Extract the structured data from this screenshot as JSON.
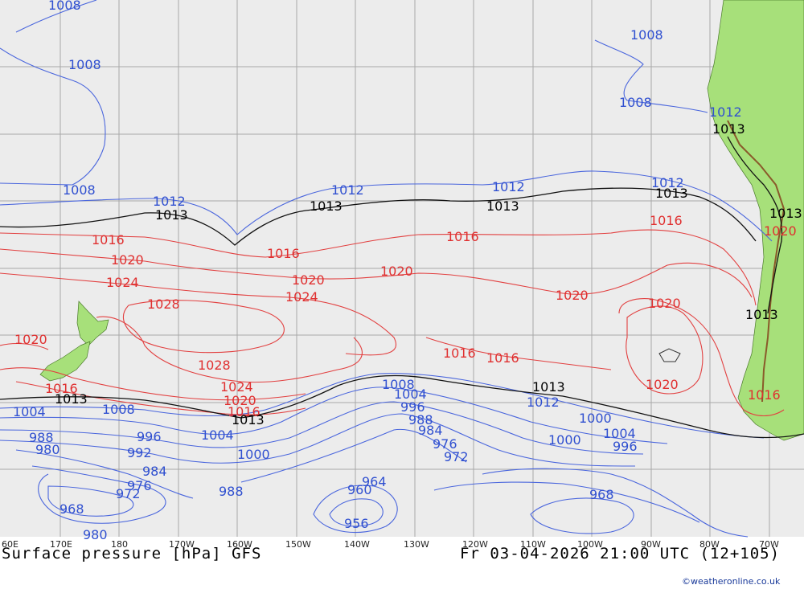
{
  "map": {
    "title_left": "Surface pressure [hPa] GFS",
    "title_right": "Fr 03-04-2026 21:00 UTC (12+105)",
    "credit": "©weatheronline.co.uk",
    "colors": {
      "ocean": "#ececec",
      "land": "#a7e07a",
      "low_isobar": "#4a66dd",
      "high_isobar": "#e24040",
      "ref_isobar": "#111111"
    },
    "lon_ticks": [
      "60E",
      "170E",
      "180",
      "170W",
      "160W",
      "150W",
      "140W",
      "130W",
      "120W",
      "110W",
      "100W",
      "90W",
      "80W",
      "70W"
    ],
    "labels_blue": [
      "1008",
      "1008",
      "1008",
      "1008",
      "1008",
      "1012",
      "1012",
      "1012",
      "1012",
      "1012",
      "1012",
      "1008",
      "1004",
      "1008",
      "1004",
      "1000",
      "996",
      "988",
      "980",
      "992",
      "984",
      "976",
      "972",
      "968",
      "980",
      "988",
      "1000",
      "960",
      "964",
      "956",
      "1004",
      "996",
      "988",
      "984",
      "976",
      "972",
      "1000",
      "1004",
      "996",
      "968"
    ],
    "labels_red": [
      "1016",
      "1020",
      "1024",
      "1028",
      "1020",
      "1016",
      "1016",
      "1020",
      "1024",
      "1028",
      "1024",
      "1020",
      "1016",
      "1016",
      "1020",
      "1016",
      "1016",
      "1020",
      "1020",
      "1016",
      "1020",
      "1016",
      "1020"
    ],
    "labels_black": [
      "1013",
      "1013",
      "1013",
      "1013",
      "1013",
      "1013",
      "1013",
      "1013",
      "1013",
      "1013"
    ]
  }
}
